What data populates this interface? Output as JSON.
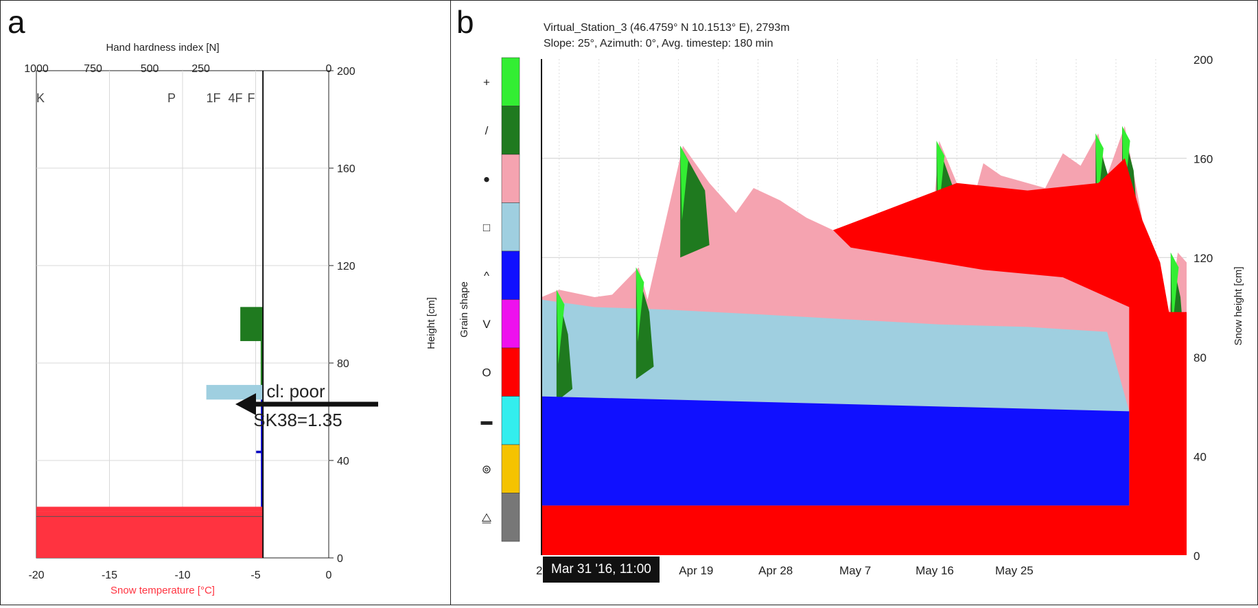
{
  "panel_a": {
    "letter": "a",
    "chart_data": {
      "type": "bar",
      "top_axis_label": "Hand hardness index [N]",
      "top_ticks": [
        "1000",
        "750",
        "500",
        "250",
        "0"
      ],
      "hardness_classes": [
        "K",
        "P",
        "1F",
        "4F",
        "F"
      ],
      "bottom_axis_label": "Snow temperature [°C]",
      "bottom_ticks": [
        "-20",
        "-15",
        "-10",
        "-5",
        "0"
      ],
      "right_axis_label": "Height [cm]",
      "right_ticks": [
        "200",
        "160",
        "120",
        "80",
        "40",
        "0"
      ],
      "xlim_temperature": [
        -20,
        0
      ],
      "xlim_hardness": [
        1000,
        0
      ],
      "ylim": [
        0,
        200
      ],
      "grid": true,
      "layers": [
        {
          "bottom": 0,
          "top": 19,
          "hardness": 1000,
          "color": "#ff3340"
        },
        {
          "bottom": 19,
          "top": 21,
          "hardness": 1000,
          "color": "#ff3340"
        },
        {
          "bottom": 21,
          "top": 65,
          "hardness": 5,
          "color": "#0000c0"
        },
        {
          "bottom": 43,
          "top": 44,
          "hardness": 30,
          "color": "#0000c0"
        },
        {
          "bottom": 65,
          "top": 71,
          "hardness": 250,
          "color": "#9fcfe0"
        },
        {
          "bottom": 71,
          "top": 89,
          "hardness": 10,
          "color": "#1f7a1f"
        },
        {
          "bottom": 89,
          "top": 103,
          "hardness": 100,
          "color": "#1f7a1f"
        }
      ],
      "annotation": {
        "line1": "cl: poor",
        "line2": "SK38=1.35",
        "height": 65
      }
    }
  },
  "panel_b": {
    "letter": "b",
    "title_line1": "Virtual_Station_3 (46.4759° N 10.1513° E), 2793m",
    "title_line2": "Slope: 25°, Azimuth: 0°, Avg. timestep: 180 min",
    "legend_axis_label": "Grain shape",
    "grain_legend": [
      {
        "symbol": "+",
        "color": "#33ee33"
      },
      {
        "symbol": "/",
        "color": "#1f7a1f"
      },
      {
        "symbol": "●",
        "color": "#f5a3b0"
      },
      {
        "symbol": "□",
        "color": "#9fcfe0"
      },
      {
        "symbol": "^",
        "color": "#1010ff"
      },
      {
        "symbol": "V",
        "color": "#ee11ee"
      },
      {
        "symbol": "O",
        "color": "#ff0000"
      },
      {
        "symbol": "▬",
        "color": "#33eeee"
      },
      {
        "symbol": "⊚",
        "color": "#f5c300"
      },
      {
        "symbol": "⧋",
        "color": "#777777"
      }
    ],
    "timestamp": "Mar 31 '16, 11:00",
    "chart_data": {
      "type": "area",
      "x_ticks": [
        "2",
        "Apr 19",
        "Apr 28",
        "May 7",
        "May 16",
        "May 25"
      ],
      "right_axis_label": "Snow height [cm]",
      "y_ticks": [
        "200",
        "160",
        "120",
        "80",
        "40",
        "0"
      ],
      "ylim": [
        0,
        200
      ],
      "snow_height_series": [
        {
          "day": 0,
          "height": 104
        },
        {
          "day": 2,
          "height": 107
        },
        {
          "day": 6,
          "height": 104
        },
        {
          "day": 8,
          "height": 105
        },
        {
          "day": 11,
          "height": 116
        },
        {
          "day": 12,
          "height": 103
        },
        {
          "day": 16,
          "height": 165
        },
        {
          "day": 19,
          "height": 150
        },
        {
          "day": 22,
          "height": 138
        },
        {
          "day": 24,
          "height": 148
        },
        {
          "day": 27,
          "height": 143
        },
        {
          "day": 30,
          "height": 136
        },
        {
          "day": 33,
          "height": 131
        },
        {
          "day": 36,
          "height": 128
        },
        {
          "day": 40,
          "height": 125
        },
        {
          "day": 44,
          "height": 122
        },
        {
          "day": 45,
          "height": 167
        },
        {
          "day": 47,
          "height": 150
        },
        {
          "day": 49,
          "height": 145
        },
        {
          "day": 50,
          "height": 158
        },
        {
          "day": 52,
          "height": 153
        },
        {
          "day": 55,
          "height": 150
        },
        {
          "day": 57,
          "height": 148
        },
        {
          "day": 59,
          "height": 162
        },
        {
          "day": 61,
          "height": 157
        },
        {
          "day": 63,
          "height": 170
        },
        {
          "day": 64,
          "height": 153
        },
        {
          "day": 66,
          "height": 173
        },
        {
          "day": 68,
          "height": 135
        },
        {
          "day": 70,
          "height": 118
        },
        {
          "day": 71,
          "height": 98
        },
        {
          "day": 72,
          "height": 122
        },
        {
          "day": 73,
          "height": 118
        }
      ],
      "layers": [
        {
          "grain": "O",
          "color": "#ff0000",
          "bottom": 0,
          "top_start": 20,
          "top_end": 20
        },
        {
          "grain": "^",
          "color": "#1010ff",
          "bottom_start": 20,
          "bottom_end": 20,
          "top_start": 64,
          "top_end": 58
        },
        {
          "grain": "□",
          "color": "#9fcfe0",
          "bottom_start": 64,
          "bottom_end": 58,
          "top_start": 103,
          "top_end": 90
        }
      ],
      "melt_day": 66.5,
      "annotation_arrow": {
        "label": "cl: poor",
        "value": "SK38=1.35"
      }
    }
  }
}
